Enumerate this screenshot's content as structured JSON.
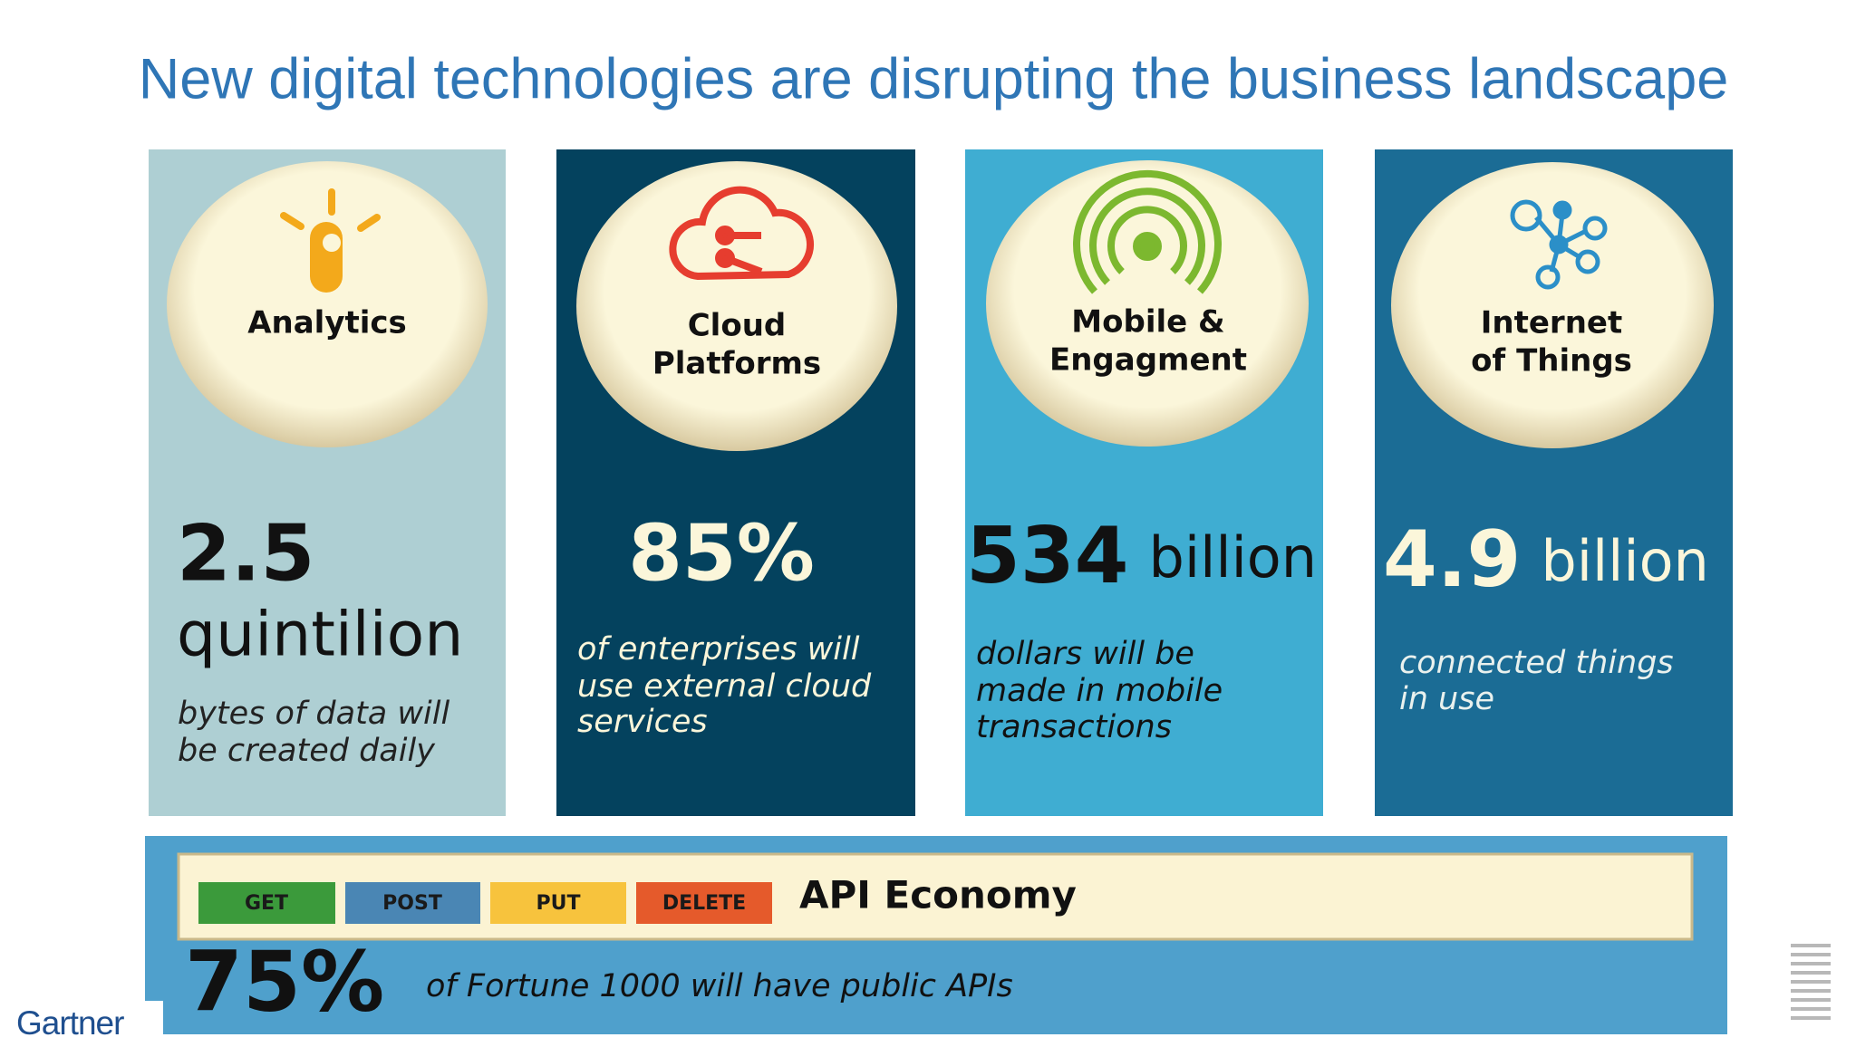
{
  "title": "New digital technologies are disrupting the business landscape",
  "panels": [
    {
      "label": [
        "Analytics"
      ],
      "figure": "2.5",
      "unit": "quintilion",
      "description": [
        "bytes of data will",
        "be created daily"
      ]
    },
    {
      "label": [
        "Cloud",
        "Platforms"
      ],
      "figure": "85%",
      "description": [
        "of enterprises will",
        "use external cloud",
        "services"
      ]
    },
    {
      "label": [
        "Mobile &",
        "Engagment"
      ],
      "figure": "534",
      "unit": "billion",
      "description": [
        "dollars will be",
        "made in mobile",
        "transactions"
      ]
    },
    {
      "label": [
        "Internet",
        "of Things"
      ],
      "figure": "4.9",
      "unit": "billion",
      "description": [
        "connected things",
        "in use"
      ]
    }
  ],
  "api": {
    "methods": [
      "GET",
      "POST",
      "PUT",
      "DELETE"
    ],
    "title": "API Economy",
    "figure": "75%",
    "description": "of Fortune 1000 will have public APIs"
  },
  "logo": "Gartner"
}
